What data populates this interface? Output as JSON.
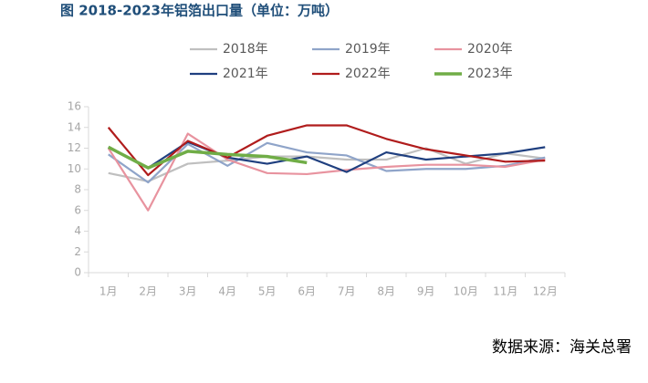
{
  "chart_data": {
    "type": "line",
    "title": "图 2018-2023年铝箔出口量（单位：万吨）",
    "source": "数据来源：海关总署",
    "categories": [
      "1月",
      "2月",
      "3月",
      "4月",
      "5月",
      "6月",
      "7月",
      "8月",
      "9月",
      "10月",
      "11月",
      "12月"
    ],
    "series": [
      {
        "name": "2018年",
        "color": "#bfbfbf",
        "values": [
          9.6,
          8.8,
          10.5,
          10.8,
          11.2,
          11.2,
          10.9,
          10.9,
          12.0,
          10.5,
          11.5,
          11.0
        ]
      },
      {
        "name": "2019年",
        "color": "#8fa4c9",
        "values": [
          11.4,
          8.7,
          12.4,
          10.3,
          12.5,
          11.6,
          11.3,
          9.8,
          10.0,
          10.0,
          10.3,
          11.1
        ]
      },
      {
        "name": "2020年",
        "color": "#e8939f",
        "values": [
          12.0,
          6.0,
          13.4,
          10.9,
          9.6,
          9.5,
          9.9,
          10.2,
          10.4,
          10.4,
          10.2,
          10.9
        ]
      },
      {
        "name": "2021年",
        "color": "#1f3f7f",
        "values": [
          12.1,
          10.1,
          12.6,
          11.1,
          10.5,
          11.2,
          9.7,
          11.6,
          10.9,
          11.2,
          11.5,
          12.1
        ]
      },
      {
        "name": "2022年",
        "color": "#b01c1c",
        "values": [
          14.0,
          9.4,
          12.7,
          11.1,
          13.2,
          14.2,
          14.2,
          12.9,
          11.9,
          11.3,
          10.7,
          10.8
        ]
      },
      {
        "name": "2023年",
        "color": "#70ad47",
        "values": [
          12.1,
          10.1,
          11.7,
          11.4,
          11.2,
          10.6,
          null,
          null,
          null,
          null,
          null,
          null
        ]
      }
    ],
    "ylim": [
      0,
      16
    ],
    "yticks": [
      0,
      2,
      4,
      6,
      8,
      10,
      12,
      14,
      16
    ]
  }
}
